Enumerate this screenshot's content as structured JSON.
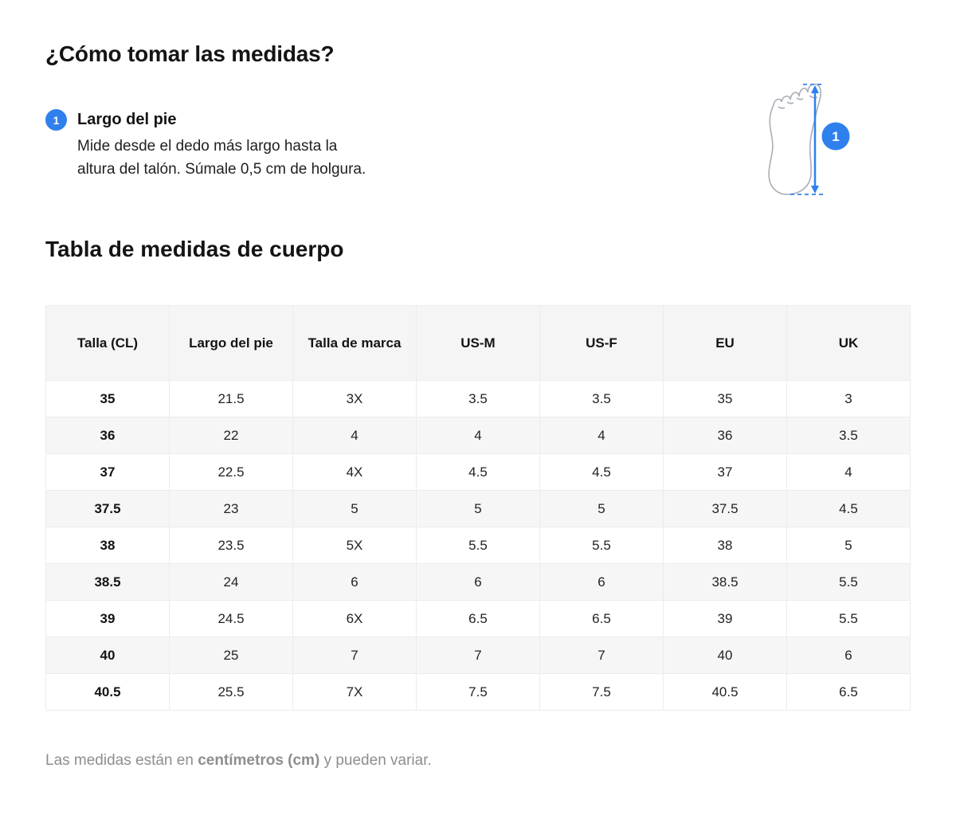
{
  "page": {
    "title": "¿Cómo tomar las medidas?",
    "table_title": "Tabla de medidas de cuerpo",
    "footer": {
      "prefix": "Las medidas están en ",
      "bold": "centímetros (cm)",
      "suffix": " y pueden variar."
    }
  },
  "instruction": {
    "number": "1",
    "label": "Largo del pie",
    "description_line1": "Mide desde el dedo más largo hasta la",
    "description_line2": "altura del talón. Súmale 0,5 cm de holgura."
  },
  "foot_diagram": {
    "badge": "1"
  },
  "colors": {
    "accent_blue": "#2f80ed",
    "arrow_blue": "#4a90ed",
    "header_bg": "#f5f5f6",
    "row_alt_bg": "#f6f6f7",
    "border": "#ececec",
    "text": "#191919",
    "muted_text": "#8e8e8e",
    "foot_outline": "#a8aeb6"
  },
  "table": {
    "columns": [
      "Talla (CL)",
      "Largo del pie",
      "Talla de marca",
      "US-M",
      "US-F",
      "EU",
      "UK"
    ],
    "rows": [
      [
        "35",
        "21.5",
        "3X",
        "3.5",
        "3.5",
        "35",
        "3"
      ],
      [
        "36",
        "22",
        "4",
        "4",
        "4",
        "36",
        "3.5"
      ],
      [
        "37",
        "22.5",
        "4X",
        "4.5",
        "4.5",
        "37",
        "4"
      ],
      [
        "37.5",
        "23",
        "5",
        "5",
        "5",
        "37.5",
        "4.5"
      ],
      [
        "38",
        "23.5",
        "5X",
        "5.5",
        "5.5",
        "38",
        "5"
      ],
      [
        "38.5",
        "24",
        "6",
        "6",
        "6",
        "38.5",
        "5.5"
      ],
      [
        "39",
        "24.5",
        "6X",
        "6.5",
        "6.5",
        "39",
        "5.5"
      ],
      [
        "40",
        "25",
        "7",
        "7",
        "7",
        "40",
        "6"
      ],
      [
        "40.5",
        "25.5",
        "7X",
        "7.5",
        "7.5",
        "40.5",
        "6.5"
      ]
    ]
  }
}
